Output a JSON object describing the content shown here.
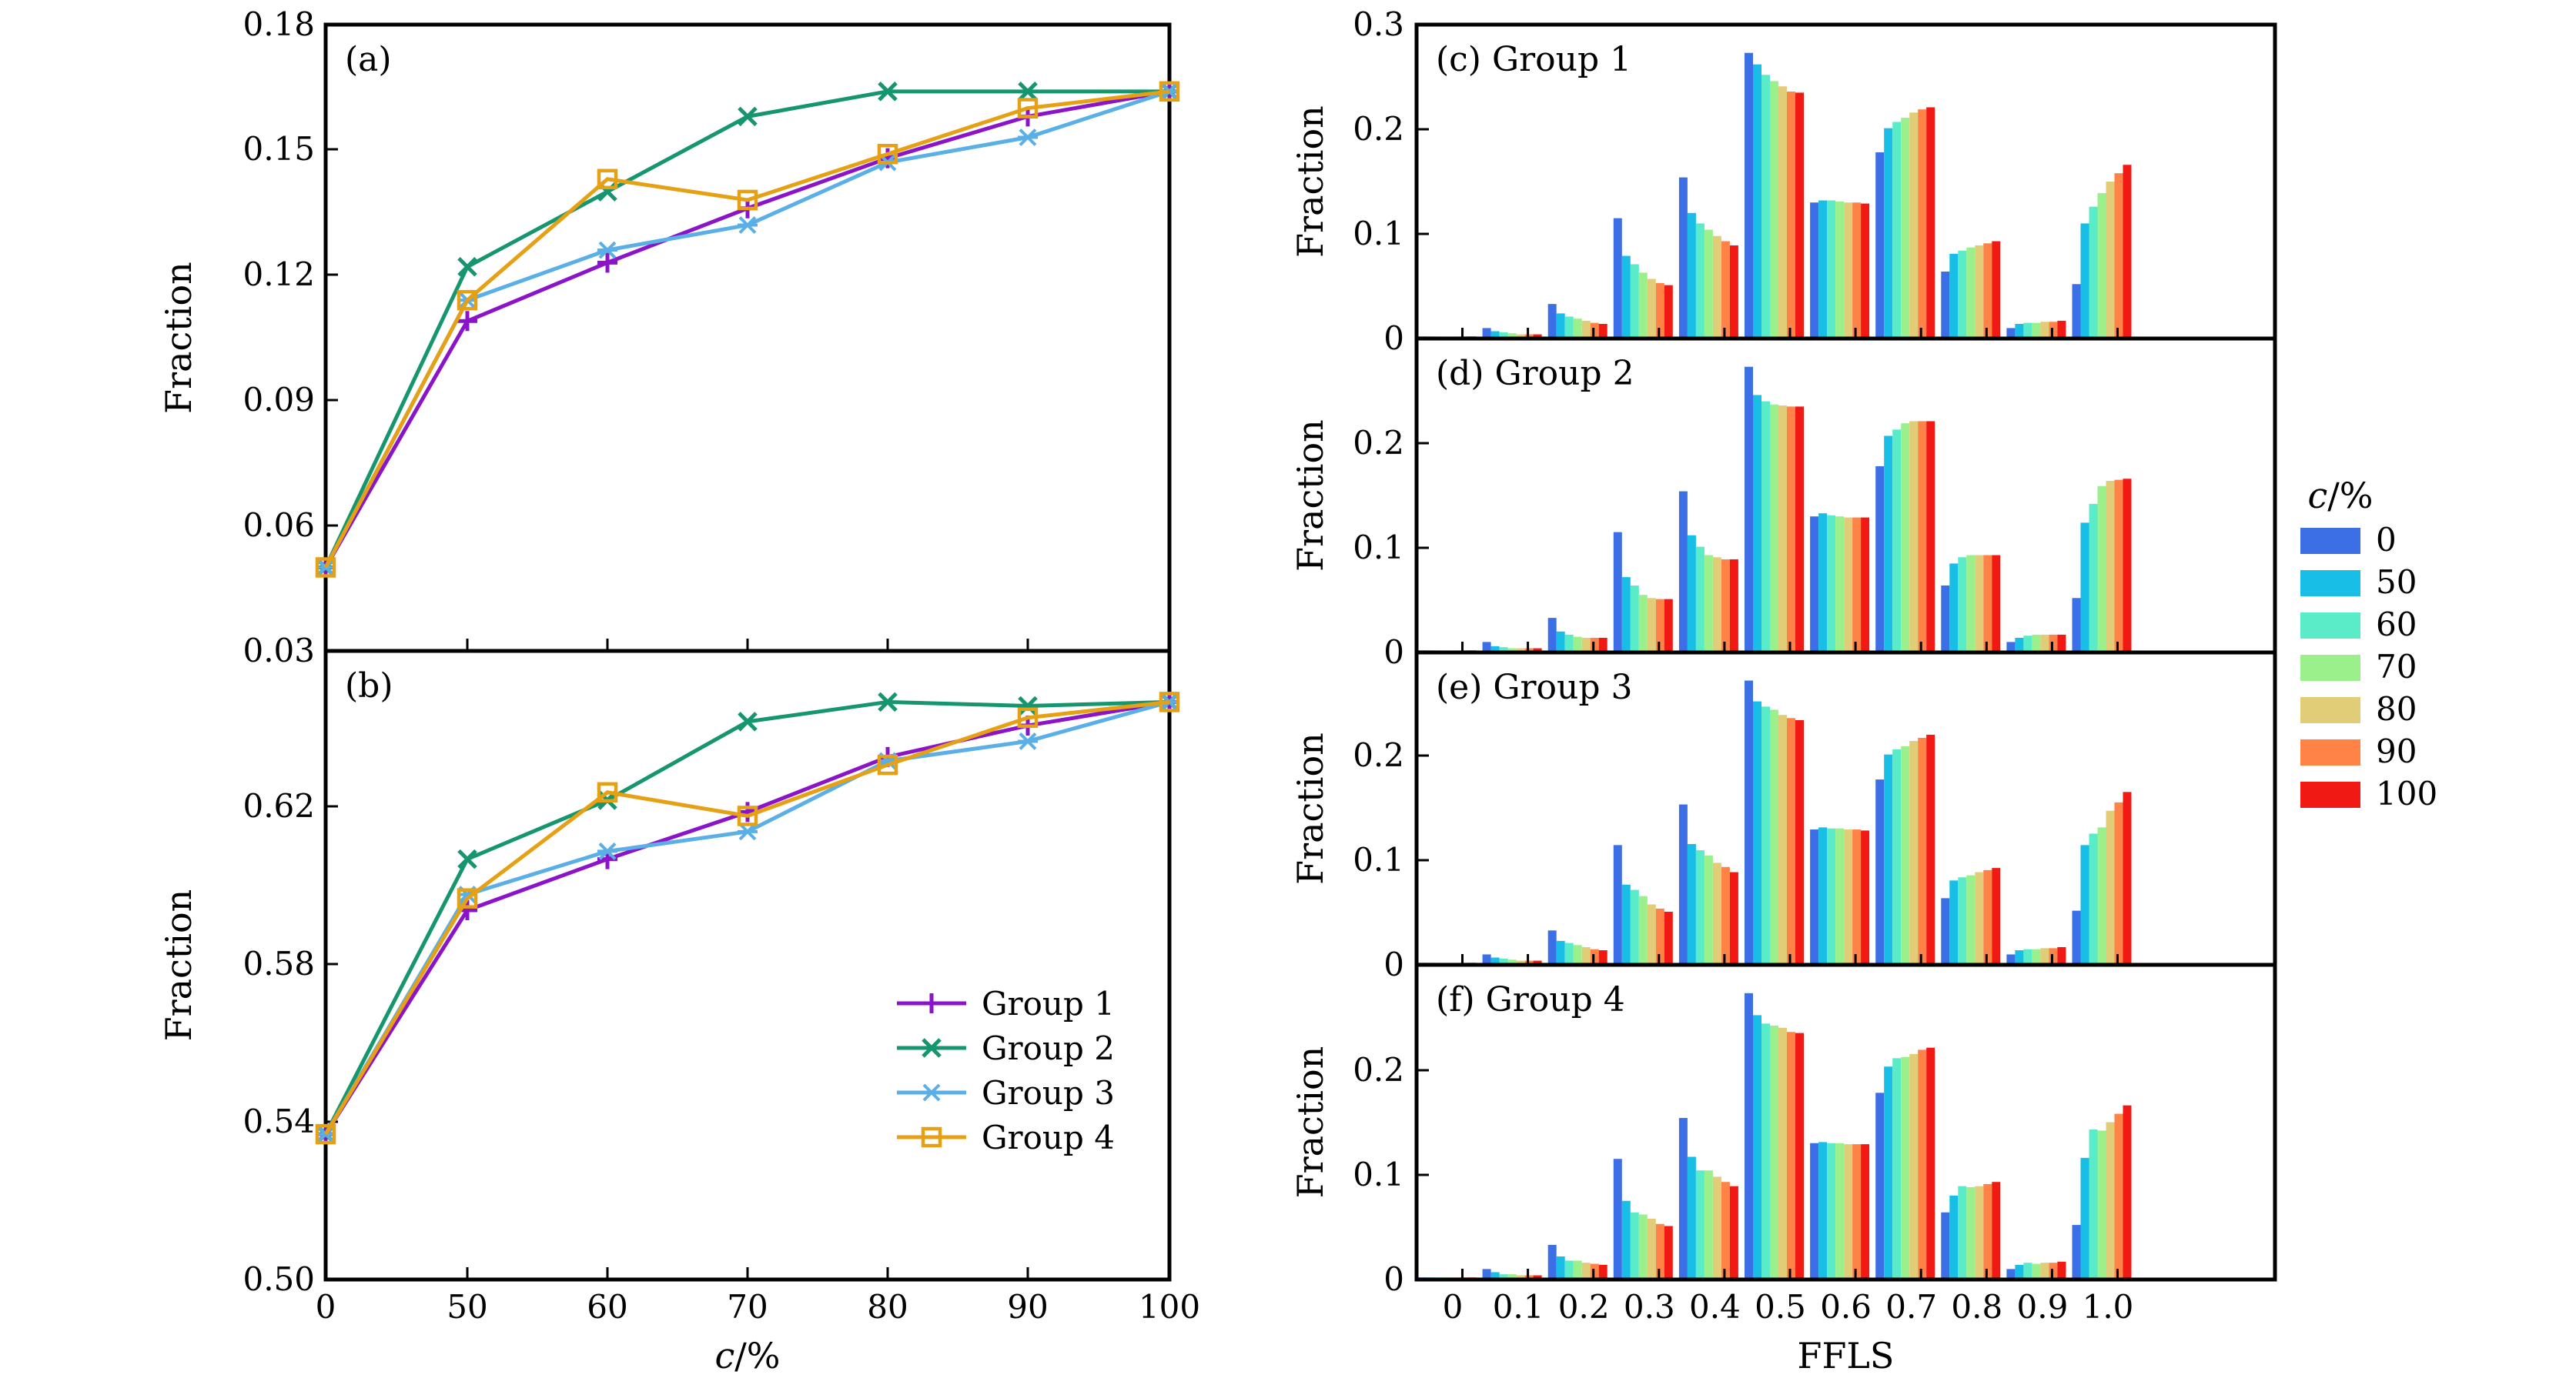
{
  "chart_data": [
    {
      "id": "a",
      "panel_label": "(a)",
      "type": "line",
      "x": [
        "0",
        "50",
        "60",
        "70",
        "80",
        "90",
        "100"
      ],
      "ylim": [
        0.03,
        0.18
      ],
      "ytick_labels": [
        "0.03",
        "0.06",
        "0.09",
        "0.12",
        "0.15",
        "0.18"
      ],
      "ylabel": "Fraction",
      "xlabel": "",
      "series": [
        {
          "name": "Group 1",
          "color": "#8c14c8",
          "marker": "plus",
          "values": [
            0.05,
            0.109,
            0.123,
            0.136,
            0.148,
            0.158,
            0.164
          ]
        },
        {
          "name": "Group 2",
          "color": "#16966e",
          "marker": "x",
          "values": [
            0.05,
            0.122,
            0.14,
            0.158,
            0.164,
            0.164,
            0.164
          ]
        },
        {
          "name": "Group 3",
          "color": "#5aafe6",
          "marker": "star",
          "values": [
            0.05,
            0.114,
            0.126,
            0.132,
            0.147,
            0.153,
            0.164
          ]
        },
        {
          "name": "Group 4",
          "color": "#e6a014",
          "marker": "square",
          "values": [
            0.05,
            0.114,
            0.143,
            0.138,
            0.149,
            0.16,
            0.164
          ]
        }
      ]
    },
    {
      "id": "b",
      "panel_label": "(b)",
      "type": "line",
      "x": [
        "0",
        "50",
        "60",
        "70",
        "80",
        "90",
        "100"
      ],
      "xtick_labels": [
        "0",
        "50",
        "60",
        "70",
        "80",
        "90",
        "100"
      ],
      "ylim": [
        0.5,
        0.66
      ],
      "ytick_labels": [
        "0.50",
        "0.54",
        "0.58",
        "0.62"
      ],
      "ylabel": "Fraction",
      "xlabel": "c/%",
      "legend": {
        "position": "bottom-right",
        "entries": [
          "Group 1",
          "Group 2",
          "Group 3",
          "Group 4"
        ]
      },
      "series": [
        {
          "name": "Group 1",
          "color": "#8c14c8",
          "marker": "plus",
          "values": [
            0.537,
            0.594,
            0.607,
            0.619,
            0.633,
            0.641,
            0.647
          ]
        },
        {
          "name": "Group 2",
          "color": "#16966e",
          "marker": "x",
          "values": [
            0.537,
            0.607,
            0.622,
            0.642,
            0.647,
            0.646,
            0.647
          ]
        },
        {
          "name": "Group 3",
          "color": "#5aafe6",
          "marker": "star",
          "values": [
            0.537,
            0.598,
            0.609,
            0.614,
            0.632,
            0.637,
            0.647
          ]
        },
        {
          "name": "Group 4",
          "color": "#e6a014",
          "marker": "square",
          "values": [
            0.537,
            0.597,
            0.624,
            0.618,
            0.631,
            0.643,
            0.647
          ]
        }
      ]
    },
    {
      "id": "c",
      "panel_label": "(c) Group 1",
      "type": "bar",
      "ylabel": "Fraction",
      "ylim": [
        0,
        0.3
      ],
      "ytick_labels": [
        "0",
        "0.1",
        "0.2",
        "0.3"
      ],
      "categories": [
        "0",
        "0.1",
        "0.2",
        "0.3",
        "0.4",
        "0.5",
        "0.6",
        "0.7",
        "0.8",
        "0.9",
        "1.0"
      ],
      "series": [
        {
          "name": "0",
          "values": [
            0.002,
            0.01,
            0.033,
            0.115,
            0.154,
            0.273,
            0.13,
            0.178,
            0.064,
            0.01,
            0.052
          ]
        },
        {
          "name": "50",
          "values": [
            0.002,
            0.007,
            0.024,
            0.079,
            0.12,
            0.262,
            0.132,
            0.201,
            0.081,
            0.014,
            0.11
          ]
        },
        {
          "name": "60",
          "values": [
            0.002,
            0.006,
            0.021,
            0.071,
            0.11,
            0.252,
            0.132,
            0.207,
            0.084,
            0.015,
            0.126
          ]
        },
        {
          "name": "70",
          "values": [
            0.002,
            0.005,
            0.019,
            0.063,
            0.104,
            0.246,
            0.131,
            0.211,
            0.087,
            0.015,
            0.139
          ]
        },
        {
          "name": "80",
          "values": [
            0.002,
            0.004,
            0.017,
            0.057,
            0.098,
            0.241,
            0.13,
            0.216,
            0.089,
            0.016,
            0.15
          ]
        },
        {
          "name": "90",
          "values": [
            0.002,
            0.004,
            0.015,
            0.053,
            0.093,
            0.236,
            0.13,
            0.219,
            0.091,
            0.016,
            0.158
          ]
        },
        {
          "name": "100",
          "values": [
            0.002,
            0.004,
            0.014,
            0.051,
            0.089,
            0.235,
            0.129,
            0.221,
            0.093,
            0.017,
            0.166
          ]
        }
      ]
    },
    {
      "id": "d",
      "panel_label": "(d) Group 2",
      "type": "bar",
      "ylabel": "Fraction",
      "ylim": [
        0,
        0.3
      ],
      "ytick_labels": [
        "0",
        "0.1",
        "0.2"
      ],
      "categories": [
        "0",
        "0.1",
        "0.2",
        "0.3",
        "0.4",
        "0.5",
        "0.6",
        "0.7",
        "0.8",
        "0.9",
        "1.0"
      ],
      "series": [
        {
          "name": "0",
          "values": [
            0.002,
            0.01,
            0.033,
            0.115,
            0.154,
            0.273,
            0.13,
            0.178,
            0.064,
            0.01,
            0.052
          ]
        },
        {
          "name": "50",
          "values": [
            0.002,
            0.006,
            0.02,
            0.072,
            0.112,
            0.246,
            0.133,
            0.207,
            0.085,
            0.014,
            0.124
          ]
        },
        {
          "name": "60",
          "values": [
            0.002,
            0.005,
            0.017,
            0.064,
            0.101,
            0.24,
            0.131,
            0.213,
            0.091,
            0.016,
            0.142
          ]
        },
        {
          "name": "70",
          "values": [
            0.002,
            0.004,
            0.015,
            0.055,
            0.093,
            0.237,
            0.13,
            0.219,
            0.093,
            0.017,
            0.159
          ]
        },
        {
          "name": "80",
          "values": [
            0.002,
            0.004,
            0.014,
            0.052,
            0.091,
            0.236,
            0.129,
            0.221,
            0.093,
            0.017,
            0.164
          ]
        },
        {
          "name": "90",
          "values": [
            0.002,
            0.004,
            0.014,
            0.051,
            0.089,
            0.235,
            0.129,
            0.221,
            0.093,
            0.017,
            0.165
          ]
        },
        {
          "name": "100",
          "values": [
            0.002,
            0.004,
            0.014,
            0.051,
            0.089,
            0.235,
            0.129,
            0.221,
            0.093,
            0.017,
            0.166
          ]
        }
      ]
    },
    {
      "id": "e",
      "panel_label": "(e) Group 3",
      "type": "bar",
      "ylabel": "Fraction",
      "ylim": [
        0,
        0.3
      ],
      "ytick_labels": [
        "0",
        "0.1",
        "0.2"
      ],
      "categories": [
        "0",
        "0.1",
        "0.2",
        "0.3",
        "0.4",
        "0.5",
        "0.6",
        "0.7",
        "0.8",
        "0.9",
        "1.0"
      ],
      "series": [
        {
          "name": "0",
          "values": [
            0.002,
            0.01,
            0.033,
            0.115,
            0.154,
            0.273,
            0.13,
            0.178,
            0.064,
            0.01,
            0.052
          ]
        },
        {
          "name": "50",
          "values": [
            0.002,
            0.007,
            0.023,
            0.077,
            0.116,
            0.253,
            0.132,
            0.202,
            0.081,
            0.014,
            0.115
          ]
        },
        {
          "name": "60",
          "values": [
            0.002,
            0.006,
            0.021,
            0.072,
            0.11,
            0.248,
            0.131,
            0.207,
            0.084,
            0.015,
            0.126
          ]
        },
        {
          "name": "70",
          "values": [
            0.002,
            0.005,
            0.019,
            0.066,
            0.105,
            0.245,
            0.131,
            0.21,
            0.086,
            0.015,
            0.132
          ]
        },
        {
          "name": "80",
          "values": [
            0.002,
            0.004,
            0.017,
            0.058,
            0.098,
            0.24,
            0.13,
            0.215,
            0.089,
            0.016,
            0.148
          ]
        },
        {
          "name": "90",
          "values": [
            0.002,
            0.004,
            0.015,
            0.054,
            0.094,
            0.237,
            0.13,
            0.218,
            0.091,
            0.016,
            0.156
          ]
        },
        {
          "name": "100",
          "values": [
            0.002,
            0.004,
            0.014,
            0.051,
            0.089,
            0.235,
            0.129,
            0.221,
            0.093,
            0.017,
            0.166
          ]
        }
      ]
    },
    {
      "id": "f",
      "panel_label": "(f) Group 4",
      "type": "bar",
      "ylabel": "Fraction",
      "xlabel": "FFLS",
      "ylim": [
        0,
        0.3
      ],
      "ytick_labels": [
        "0",
        "0.1",
        "0.2"
      ],
      "categories": [
        "0",
        "0.1",
        "0.2",
        "0.3",
        "0.4",
        "0.5",
        "0.6",
        "0.7",
        "0.8",
        "0.9",
        "1.0"
      ],
      "series": [
        {
          "name": "0",
          "values": [
            0.002,
            0.01,
            0.033,
            0.115,
            0.154,
            0.273,
            0.13,
            0.178,
            0.064,
            0.01,
            0.052
          ]
        },
        {
          "name": "50",
          "values": [
            0.002,
            0.007,
            0.022,
            0.075,
            0.117,
            0.252,
            0.131,
            0.203,
            0.08,
            0.014,
            0.116
          ]
        },
        {
          "name": "60",
          "values": [
            0.002,
            0.005,
            0.018,
            0.064,
            0.104,
            0.244,
            0.13,
            0.211,
            0.089,
            0.016,
            0.143
          ]
        },
        {
          "name": "70",
          "values": [
            0.002,
            0.005,
            0.018,
            0.062,
            0.104,
            0.242,
            0.13,
            0.212,
            0.088,
            0.015,
            0.142
          ]
        },
        {
          "name": "80",
          "values": [
            0.002,
            0.004,
            0.016,
            0.058,
            0.098,
            0.24,
            0.129,
            0.215,
            0.089,
            0.016,
            0.15
          ]
        },
        {
          "name": "90",
          "values": [
            0.002,
            0.004,
            0.015,
            0.053,
            0.093,
            0.236,
            0.129,
            0.219,
            0.091,
            0.016,
            0.158
          ]
        },
        {
          "name": "100",
          "values": [
            0.002,
            0.004,
            0.014,
            0.051,
            0.089,
            0.235,
            0.129,
            0.221,
            0.093,
            0.017,
            0.166
          ]
        }
      ]
    }
  ],
  "bar_legend": {
    "title": "c/%",
    "entries": [
      {
        "label": "0",
        "color": "#3c6ee6"
      },
      {
        "label": "50",
        "color": "#19bee6"
      },
      {
        "label": "60",
        "color": "#5aebc8"
      },
      {
        "label": "70",
        "color": "#9bf08c"
      },
      {
        "label": "80",
        "color": "#e1cd78"
      },
      {
        "label": "90",
        "color": "#ff8246"
      },
      {
        "label": "100",
        "color": "#f01914"
      }
    ]
  }
}
